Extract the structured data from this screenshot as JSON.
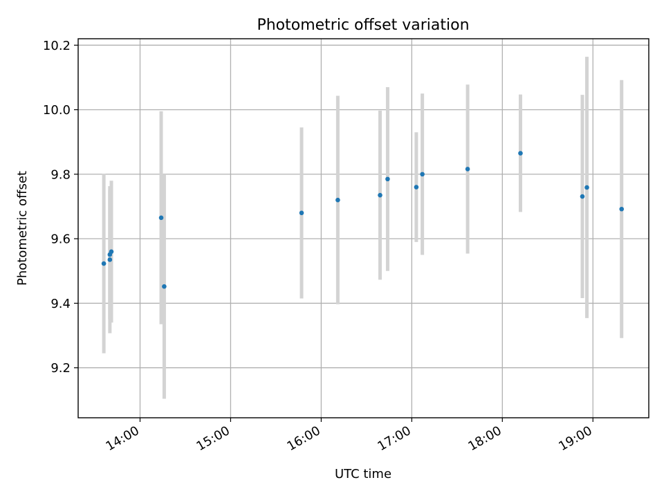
{
  "chart_data": {
    "type": "scatter",
    "title": "Photometric offset variation",
    "xlabel": "UTC time",
    "ylabel": "Photometric offset",
    "xlim": [
      "13:19",
      "19:37"
    ],
    "ylim": [
      9.045,
      10.22
    ],
    "x_ticks": [
      "14:00",
      "15:00",
      "16:00",
      "17:00",
      "18:00",
      "19:00"
    ],
    "y_ticks": [
      9.2,
      9.4,
      9.6,
      9.8,
      10.0,
      10.2
    ],
    "grid": true,
    "colors": {
      "points": "#1f77b4",
      "error_bars": "#d3d3d3"
    },
    "series": [
      {
        "points": [
          {
            "x": "13:36",
            "y": 9.523,
            "err": 0.278
          },
          {
            "x": "13:40",
            "y": 9.535,
            "err": 0.228
          },
          {
            "x": "13:40",
            "y": 9.551,
            "err": 0.2
          },
          {
            "x": "13:41",
            "y": 9.56,
            "err": 0.22
          },
          {
            "x": "14:14",
            "y": 9.665,
            "err": 0.33
          },
          {
            "x": "14:16",
            "y": 9.452,
            "err": 0.348
          },
          {
            "x": "15:47",
            "y": 9.68,
            "err": 0.265
          },
          {
            "x": "16:11",
            "y": 9.72,
            "err": 0.323
          },
          {
            "x": "16:39",
            "y": 9.735,
            "err": 0.262
          },
          {
            "x": "16:44",
            "y": 9.785,
            "err": 0.285
          },
          {
            "x": "17:03",
            "y": 9.76,
            "err": 0.17
          },
          {
            "x": "17:07",
            "y": 9.8,
            "err": 0.25
          },
          {
            "x": "17:37",
            "y": 9.816,
            "err": 0.262
          },
          {
            "x": "18:12",
            "y": 9.865,
            "err": 0.182
          },
          {
            "x": "18:53",
            "y": 9.731,
            "err": 0.315
          },
          {
            "x": "18:56",
            "y": 9.759,
            "err": 0.405
          },
          {
            "x": "19:19",
            "y": 9.692,
            "err": 0.4
          }
        ]
      }
    ]
  }
}
